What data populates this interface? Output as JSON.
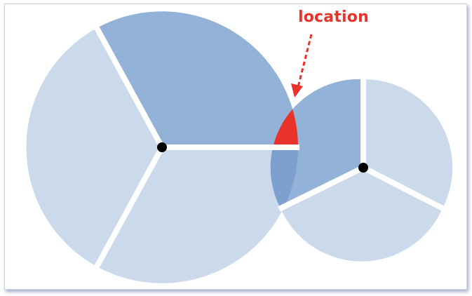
{
  "callout": {
    "label": "location"
  },
  "colors": {
    "light_sector": "#cbdaeb",
    "dark_sector": "#93b2d7",
    "overlap_sector": "#7ea0cf",
    "highlight": "#e8322a",
    "separator": "#ffffff",
    "center_point": "#000000",
    "border": "#c9d3e3"
  },
  "circles": [
    {
      "id": "large-circle",
      "sectors": [
        {
          "id": "upper-sector",
          "shade": "dark"
        },
        {
          "id": "left-sector",
          "shade": "light"
        },
        {
          "id": "lower-sector",
          "shade": "light"
        }
      ]
    },
    {
      "id": "small-circle",
      "sectors": [
        {
          "id": "upper-left-sector",
          "shade": "dark"
        },
        {
          "id": "right-sector",
          "shade": "light"
        },
        {
          "id": "lower-sector",
          "shade": "light"
        }
      ]
    }
  ]
}
